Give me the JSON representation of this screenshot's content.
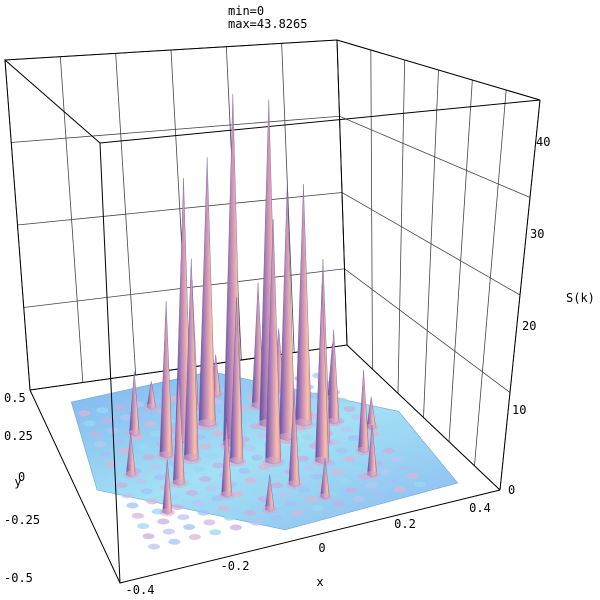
{
  "header": {
    "min_label": "min=0",
    "max_label": "max=43.8265"
  },
  "chart_data": {
    "type": "surface3d",
    "title": "",
    "xlabel": "x",
    "ylabel": "y",
    "zlabel": "S(k)",
    "xlim": [
      -0.5,
      0.5
    ],
    "ylim": [
      -0.5,
      0.5
    ],
    "zlim": [
      0,
      45
    ],
    "x_ticks": [
      "-0.4",
      "-0.2",
      "0",
      "0.2",
      "0.4"
    ],
    "y_ticks": [
      "0.5",
      "0.25",
      "0",
      "-0.25",
      "-0.5"
    ],
    "z_ticks": [
      "0",
      "10",
      "20",
      "30",
      "40"
    ],
    "grid": true,
    "min": 0,
    "max": 43.8265,
    "peaks": [
      {
        "x": -0.03,
        "y": 0.05,
        "z": 43.8
      },
      {
        "x": 0.1,
        "y": 0.12,
        "z": 42.0
      },
      {
        "x": -0.06,
        "y": 0.18,
        "z": 34.5
      },
      {
        "x": -0.15,
        "y": 0.12,
        "z": 33.0
      },
      {
        "x": 0.12,
        "y": 0.03,
        "z": 32.0
      },
      {
        "x": 0.19,
        "y": 0.09,
        "z": 31.0
      },
      {
        "x": 0.04,
        "y": -0.08,
        "z": 29.5
      },
      {
        "x": -0.16,
        "y": 0.02,
        "z": 24.5
      },
      {
        "x": 0.2,
        "y": -0.03,
        "z": 23.0
      },
      {
        "x": 0.16,
        "y": -0.13,
        "z": 21.5
      },
      {
        "x": -0.05,
        "y": -0.04,
        "z": 20.0
      },
      {
        "x": -0.22,
        "y": 0.06,
        "z": 19.0
      },
      {
        "x": -0.07,
        "y": 0.28,
        "z": 17.0
      },
      {
        "x": 0.11,
        "y": 0.23,
        "z": 16.5
      },
      {
        "x": -0.23,
        "y": -0.09,
        "z": 13.0
      },
      {
        "x": 0.27,
        "y": 0.07,
        "z": 12.0
      },
      {
        "x": 0.05,
        "y": -0.22,
        "z": 11.0
      },
      {
        "x": 0.28,
        "y": -0.12,
        "z": 10.0
      },
      {
        "x": -0.13,
        "y": -0.2,
        "z": 9.0
      },
      {
        "x": 0.2,
        "y": 0.3,
        "z": 8.5
      },
      {
        "x": -0.27,
        "y": 0.2,
        "z": 8.0
      },
      {
        "x": 0.32,
        "y": 0.2,
        "z": 7.5
      },
      {
        "x": -0.3,
        "y": -0.22,
        "z": 6.0
      },
      {
        "x": 0.25,
        "y": -0.26,
        "z": 6.0
      },
      {
        "x": 0.02,
        "y": 0.33,
        "z": 5.5
      },
      {
        "x": -0.34,
        "y": 0.0,
        "z": 5.0
      },
      {
        "x": 0.1,
        "y": -0.32,
        "z": 4.5
      },
      {
        "x": -0.05,
        "y": -0.32,
        "z": 4.0
      },
      {
        "x": 0.35,
        "y": 0.0,
        "z": 4.0
      },
      {
        "x": -0.18,
        "y": 0.32,
        "z": 3.5
      }
    ]
  }
}
